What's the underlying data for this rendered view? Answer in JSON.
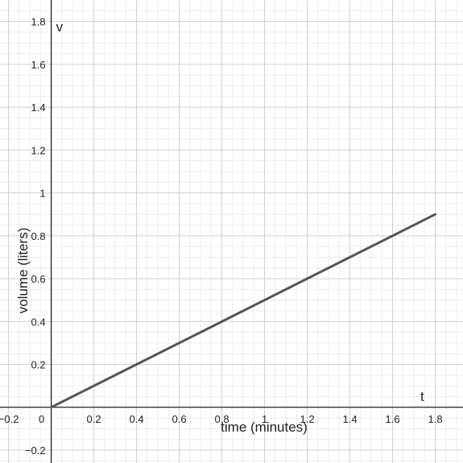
{
  "chart_data": {
    "type": "line",
    "title": "",
    "xlabel": "time (minutes)",
    "ylabel": "volume (liters)",
    "x_axis_name": "t",
    "y_axis_name": "v",
    "xlim": [
      -0.24,
      1.93
    ],
    "ylim": [
      -0.26,
      1.9
    ],
    "grid": true,
    "x_ticks": [
      -0.2,
      0.2,
      0.4,
      0.6,
      0.8,
      1,
      1.2,
      1.4,
      1.6,
      1.8
    ],
    "x_tick_labels": [
      "−0.2",
      "0.2",
      "0.4",
      "0.6",
      "0.8",
      "1",
      "1.2",
      "1.4",
      "1.6",
      "1.8"
    ],
    "y_ticks": [
      -0.2,
      0.2,
      0.4,
      0.6,
      0.8,
      1,
      1.2,
      1.4,
      1.6,
      1.8
    ],
    "y_tick_labels": [
      "−0.2",
      "0.2",
      "0.4",
      "0.6",
      "0.8",
      "1",
      "1.2",
      "1.4",
      "1.6",
      "1.8"
    ],
    "origin_label": "0",
    "series": [
      {
        "x": [
          0,
          1.8
        ],
        "y": [
          0,
          0.9
        ],
        "color": "#555555"
      }
    ]
  }
}
